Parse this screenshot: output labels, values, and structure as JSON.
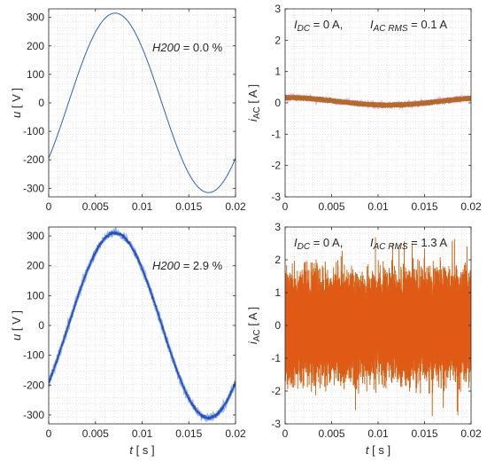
{
  "chart_data": [
    {
      "type": "line",
      "xlabel": "",
      "ylabel_var": "u",
      "ylabel_unit": "V",
      "xlim": [
        0,
        0.02
      ],
      "ylim": [
        -330,
        330
      ],
      "xticks": [
        "0",
        "0.005",
        "0.01",
        "0.015",
        "0.02"
      ],
      "yticks": [
        "300",
        "200",
        "100",
        "0",
        "-100",
        "-200",
        "-300"
      ],
      "xtick_values": [
        0,
        0.005,
        0.01,
        0.015,
        0.02
      ],
      "ytick_values": [
        300,
        200,
        100,
        0,
        -100,
        -200,
        -300
      ],
      "grid": true,
      "annotation": {
        "var": "H200",
        "value": " = 0.0 %"
      },
      "series": [
        {
          "kind": "sine",
          "amplitude": 315,
          "phase_deg": -38,
          "frequency_hz": 50,
          "noise": 0,
          "color": "#2a63b0"
        }
      ]
    },
    {
      "type": "line",
      "xlabel": "",
      "ylabel_var": "i",
      "ylabel_sub": "AC",
      "ylabel_unit": "A",
      "xlim": [
        0,
        0.02
      ],
      "ylim": [
        -3,
        3
      ],
      "xticks": [
        "0",
        "0.005",
        "0.01",
        "0.015",
        "0.02"
      ],
      "yticks": [
        "3",
        "2",
        "1",
        "0",
        "-1",
        "-2",
        "-3"
      ],
      "xtick_values": [
        0,
        0.005,
        0.01,
        0.015,
        0.02
      ],
      "ytick_values": [
        3,
        2,
        1,
        0,
        -1,
        -2,
        -3
      ],
      "grid": true,
      "annotation_dc": {
        "var": "I",
        "sub": "DC",
        "value": " = 0 A,"
      },
      "annotation_ac": {
        "var": "I",
        "sub": "AC RMS",
        "value": " = 0.1 A"
      },
      "series": [
        {
          "kind": "current-low",
          "color": "#b36b2c",
          "base_offset": 0.2,
          "wave_amplitude": 0.15,
          "noise": 0.07
        }
      ]
    },
    {
      "type": "line",
      "xlabel_var": "t",
      "xlabel_unit": "s",
      "ylabel_var": "u",
      "ylabel_unit": "V",
      "xlim": [
        0,
        0.02
      ],
      "ylim": [
        -330,
        330
      ],
      "xticks": [
        "0",
        "0.005",
        "0.01",
        "0.015",
        "0.02"
      ],
      "yticks": [
        "300",
        "200",
        "100",
        "0",
        "-100",
        "-200",
        "-300"
      ],
      "xtick_values": [
        0,
        0.005,
        0.01,
        0.015,
        0.02
      ],
      "ytick_values": [
        300,
        200,
        100,
        0,
        -100,
        -200,
        -300
      ],
      "grid": true,
      "annotation": {
        "var": "H200",
        "value": " = 2.9 %"
      },
      "series": [
        {
          "kind": "sine",
          "amplitude": 310,
          "phase_deg": -38,
          "frequency_hz": 50,
          "noise": 8,
          "color": "#2a4fb8"
        }
      ]
    },
    {
      "type": "line",
      "xlabel_var": "t",
      "xlabel_unit": "s",
      "ylabel_var": "i",
      "ylabel_sub": "AC",
      "ylabel_unit": "A",
      "xlim": [
        0,
        0.02
      ],
      "ylim": [
        -3,
        3
      ],
      "xticks": [
        "0",
        "0.005",
        "0.01",
        "0.015",
        "0.02"
      ],
      "yticks": [
        "3",
        "2",
        "1",
        "0",
        "-1",
        "-2",
        "-3"
      ],
      "xtick_values": [
        0,
        0.005,
        0.01,
        0.015,
        0.02
      ],
      "ytick_values": [
        3,
        2,
        1,
        0,
        -1,
        -2,
        -3
      ],
      "grid": true,
      "annotation_dc": {
        "var": "I",
        "sub": "DC",
        "value": " = 0 A,"
      },
      "annotation_ac": {
        "var": "I",
        "sub": "AC RMS",
        "value": " = 1.3 A"
      },
      "series": [
        {
          "kind": "current-high",
          "color": "#e05a16",
          "envelope": 2.1,
          "peak": 2.8
        }
      ]
    }
  ]
}
